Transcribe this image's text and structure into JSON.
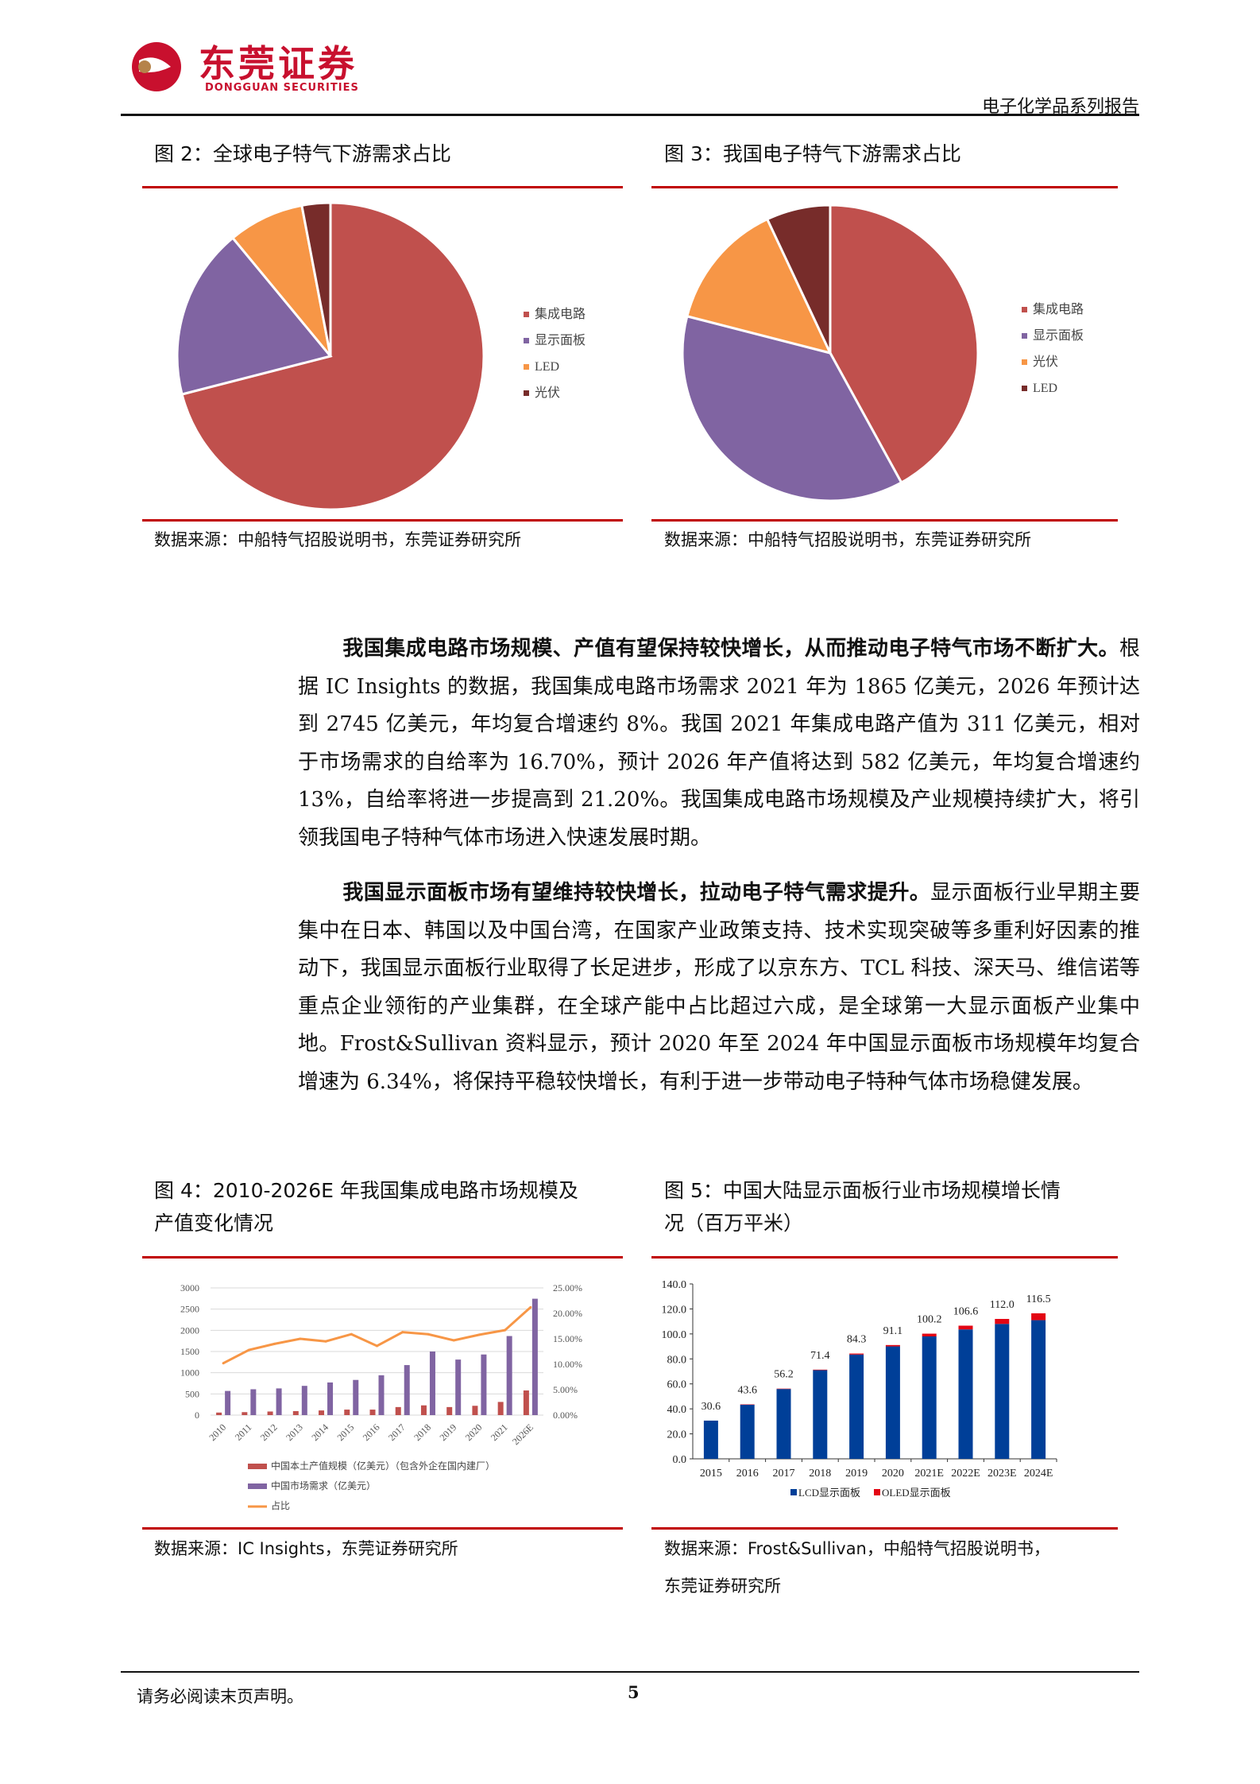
{
  "header": {
    "logo_cn": "东莞证券",
    "logo_en": "DONGGUAN SECURITIES",
    "report_type": "电子化学品系列报告"
  },
  "fig2": {
    "caption": "图 2：全球电子特气下游需求占比",
    "source": "数据来源：中船特气招股说明书，东莞证券研究所"
  },
  "fig3": {
    "caption": "图 3：我国电子特气下游需求占比",
    "source": "数据来源：中船特气招股说明书，东莞证券研究所"
  },
  "paragraphs": [
    {
      "bold": "我国集成电路市场规模、产值有望保持较快增长，从而推动电子特气市场不断扩大。",
      "text": "根据 IC Insights 的数据，我国集成电路市场需求 2021 年为 1865 亿美元，2026 年预计达到 2745 亿美元，年均复合增速约 8%。我国 2021 年集成电路产值为 311 亿美元，相对于市场需求的自给率为 16.70%，预计 2026 年产值将达到 582 亿美元，年均复合增速约 13%，自给率将进一步提高到 21.20%。我国集成电路市场规模及产业规模持续扩大，将引领我国电子特种气体市场进入快速发展时期。"
    },
    {
      "bold": "我国显示面板市场有望维持较快增长，拉动电子特气需求提升。",
      "text": "显示面板行业早期主要集中在日本、韩国以及中国台湾，在国家产业政策支持、技术实现突破等多重利好因素的推动下，我国显示面板行业取得了长足进步，形成了以京东方、TCL 科技、深天马、维信诺等重点企业领衔的产业集群，在全球产能中占比超过六成，是全球第一大显示面板产业集中地。Frost&Sullivan 资料显示，预计 2020 年至 2024 年中国显示面板市场规模年均复合增速为 6.34%，将保持平稳较快增长，有利于进一步带动电子特种气体市场稳健发展。"
    }
  ],
  "fig4": {
    "caption_line1": "图 4：2010-2026E 年我国集成电路市场规模及",
    "caption_line2": "产值变化情况",
    "source": "数据来源：IC Insights，东莞证券研究所"
  },
  "fig5": {
    "caption_line1": "图 5：中国大陆显示面板行业市场规模增长情",
    "caption_line2": "况（百万平米）",
    "source_line1": "数据来源：Frost&Sullivan，中船特气招股说明书，",
    "source_line2": "东莞证券研究所"
  },
  "footer": {
    "disclaimer": "请务必阅读末页声明。",
    "page": "5"
  },
  "chart_data": [
    {
      "type": "pie",
      "title": "全球电子特气下游需求占比",
      "labels": [
        "集成电路",
        "显示面板",
        "LED",
        "光伏"
      ],
      "values": [
        71,
        18,
        8,
        3
      ],
      "colors": [
        "#c0504d",
        "#8064a2",
        "#f79646",
        "#772c2a"
      ],
      "legend": "right"
    },
    {
      "type": "pie",
      "title": "我国电子特气下游需求占比",
      "labels": [
        "集成电路",
        "显示面板",
        "光伏",
        "LED"
      ],
      "values": [
        42,
        37,
        14,
        7
      ],
      "colors": [
        "#c0504d",
        "#8064a2",
        "#f79646",
        "#772c2a"
      ],
      "legend": "right"
    },
    {
      "type": "bar",
      "title": "2010-2026E 年我国集成电路市场规模及产值变化情况",
      "categories": [
        "2010",
        "2011",
        "2012",
        "2013",
        "2014",
        "2015",
        "2016",
        "2017",
        "2018",
        "2019",
        "2020",
        "2021",
        "2026E"
      ],
      "series": [
        {
          "name": "中国本土产值规模（亿美元）（包含外企在国内建厂）",
          "type": "bar",
          "axis": "left",
          "color": "#c0504d",
          "values": [
            60,
            70,
            85,
            95,
            110,
            130,
            130,
            190,
            230,
            190,
            220,
            311,
            582
          ]
        },
        {
          "name": "中国市场需求（亿美元）",
          "type": "bar",
          "axis": "left",
          "color": "#8064a2",
          "values": [
            570,
            610,
            630,
            690,
            770,
            830,
            940,
            1180,
            1500,
            1310,
            1430,
            1865,
            2745
          ]
        },
        {
          "name": "占比",
          "type": "line",
          "axis": "right",
          "color": "#f79646",
          "values": [
            10.2,
            12.8,
            14.0,
            15.0,
            14.5,
            15.9,
            13.6,
            16.3,
            15.9,
            14.7,
            15.8,
            16.7,
            21.2
          ]
        }
      ],
      "yticks_left": [
        "0",
        "500",
        "1000",
        "1500",
        "2000",
        "2500",
        "3000"
      ],
      "ylim_left": [
        0,
        3000
      ],
      "yticks_right": [
        "0.00%",
        "5.00%",
        "10.00%",
        "15.00%",
        "20.00%",
        "25.00%"
      ],
      "ylim_right": [
        0,
        25
      ],
      "grid": true,
      "legend": "bottom"
    },
    {
      "type": "bar",
      "stacked": true,
      "title": "中国大陆显示面板行业市场规模增长情况（百万平米）",
      "categories": [
        "2015",
        "2016",
        "2017",
        "2018",
        "2019",
        "2020",
        "2021E",
        "2022E",
        "2023E",
        "2024E"
      ],
      "totals": [
        "30.6",
        "43.6",
        "56.2",
        "71.4",
        "84.3",
        "91.1",
        "100.2",
        "106.6",
        "112.0",
        "116.5"
      ],
      "series": [
        {
          "name": "LCD显示面板",
          "color": "#003f98",
          "values": [
            30.6,
            43.3,
            55.9,
            71.0,
            83.5,
            90.0,
            98.0,
            103.6,
            108.0,
            111.0
          ]
        },
        {
          "name": "OLED显示面板",
          "color": "#e30613",
          "values": [
            0,
            0.3,
            0.3,
            0.4,
            0.8,
            1.1,
            2.2,
            3.0,
            4.0,
            5.5
          ]
        }
      ],
      "yticks": [
        "0.0",
        "20.0",
        "40.0",
        "60.0",
        "80.0",
        "100.0",
        "120.0",
        "140.0"
      ],
      "ylim": [
        0,
        140
      ],
      "grid": false,
      "legend": "bottom"
    }
  ]
}
